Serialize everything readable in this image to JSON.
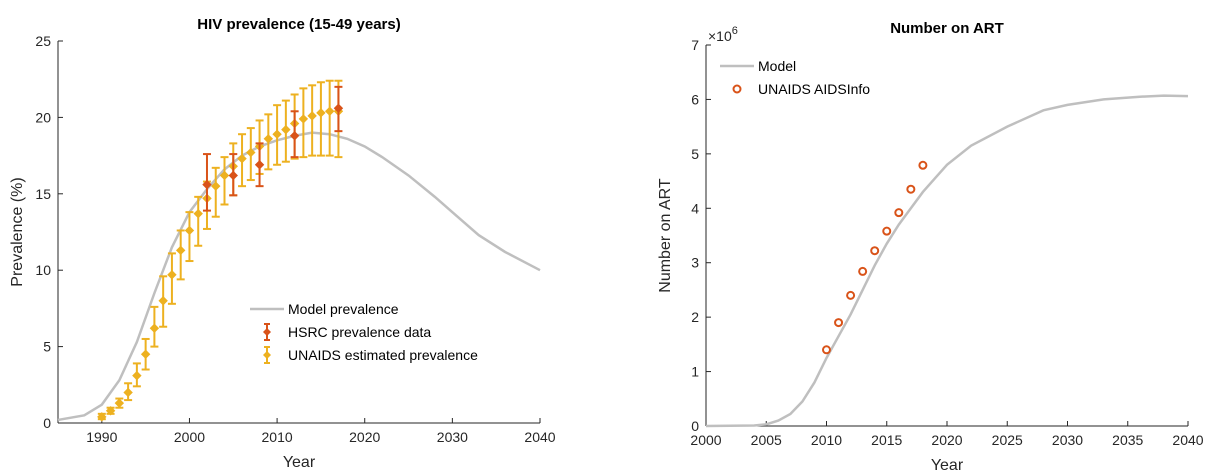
{
  "chart_data": [
    {
      "type": "line",
      "title": "HIV prevalence (15-49 years)",
      "x_label": "Year",
      "y_label": "Prevalence (%)",
      "xlim": [
        1985,
        2040
      ],
      "xticks": [
        1990,
        2000,
        2010,
        2020,
        2030,
        2040
      ],
      "ylim": [
        0,
        25
      ],
      "yticks": [
        0,
        5,
        10,
        15,
        20,
        25
      ],
      "legend": "lower-right",
      "series": [
        {
          "name": "Model prevalence",
          "mark": "line",
          "color": "#bfbfbf",
          "x": [
            1985,
            1988,
            1990,
            1992,
            1994,
            1996,
            1998,
            2000,
            2002,
            2004,
            2006,
            2008,
            2010,
            2012,
            2014,
            2016,
            2018,
            2020,
            2022,
            2025,
            2028,
            2030,
            2033,
            2036,
            2040
          ],
          "values": [
            0.2,
            0.5,
            1.2,
            2.8,
            5.3,
            8.5,
            11.5,
            13.8,
            15.3,
            16.6,
            17.5,
            18.1,
            18.5,
            18.8,
            19.0,
            18.9,
            18.6,
            18.1,
            17.4,
            16.2,
            14.8,
            13.8,
            12.3,
            11.2,
            10.0
          ]
        },
        {
          "name": "UNAIDS estimated prevalence",
          "mark": "errorbar",
          "color": "#edb120",
          "x": [
            1990,
            1991,
            1992,
            1993,
            1994,
            1995,
            1996,
            1997,
            1998,
            1999,
            2000,
            2001,
            2002,
            2003,
            2004,
            2005,
            2006,
            2007,
            2008,
            2009,
            2010,
            2011,
            2012,
            2013,
            2014,
            2015,
            2016,
            2017
          ],
          "values": [
            0.4,
            0.8,
            1.3,
            2.0,
            3.1,
            4.5,
            6.2,
            8.0,
            9.7,
            11.3,
            12.6,
            13.7,
            14.7,
            15.5,
            16.2,
            16.8,
            17.3,
            17.7,
            18.1,
            18.6,
            18.9,
            19.2,
            19.6,
            19.9,
            20.1,
            20.3,
            20.4,
            20.4
          ],
          "lower": [
            0.25,
            0.6,
            1.0,
            1.5,
            2.4,
            3.5,
            5.0,
            6.3,
            7.8,
            9.4,
            10.6,
            11.6,
            12.7,
            13.5,
            14.3,
            14.9,
            15.5,
            15.9,
            16.3,
            16.6,
            16.9,
            17.1,
            17.3,
            17.4,
            17.5,
            17.5,
            17.5,
            17.4
          ],
          "upper": [
            0.6,
            1.0,
            1.6,
            2.6,
            3.9,
            5.5,
            7.6,
            9.6,
            11.1,
            12.6,
            13.8,
            14.8,
            15.8,
            16.7,
            17.4,
            18.3,
            18.9,
            19.3,
            19.8,
            20.2,
            20.8,
            21.1,
            21.5,
            21.9,
            22.1,
            22.3,
            22.4,
            22.4
          ]
        },
        {
          "name": "HSRC prevalence data",
          "mark": "errorbar",
          "color": "#d95319",
          "x": [
            2002,
            2005,
            2008,
            2012,
            2017
          ],
          "values": [
            15.6,
            16.2,
            16.9,
            18.8,
            20.6
          ],
          "lower": [
            13.9,
            14.9,
            15.5,
            17.4,
            19.1
          ],
          "upper": [
            17.6,
            17.6,
            18.3,
            20.4,
            22.0
          ]
        }
      ],
      "legend_order": [
        0,
        2,
        1
      ]
    },
    {
      "type": "line",
      "title": "Number on ART",
      "x_label": "Year",
      "y_label": "Number on ART",
      "y_scale_base": "×10",
      "y_scale_power": "6",
      "xlim": [
        2000,
        2040
      ],
      "xticks": [
        2000,
        2005,
        2010,
        2015,
        2020,
        2025,
        2030,
        2035,
        2040
      ],
      "ylim": [
        0,
        7
      ],
      "yticks": [
        0,
        1,
        2,
        3,
        4,
        5,
        6,
        7
      ],
      "legend": "upper-left",
      "series": [
        {
          "name": "Model",
          "mark": "line",
          "color": "#bfbfbf",
          "x": [
            2000,
            2004,
            2005,
            2006,
            2007,
            2008,
            2009,
            2010,
            2011,
            2012,
            2013,
            2014,
            2015,
            2016,
            2017,
            2018,
            2019,
            2020,
            2022,
            2025,
            2028,
            2030,
            2033,
            2036,
            2038,
            2040
          ],
          "values": [
            0,
            0.01,
            0.03,
            0.1,
            0.22,
            0.45,
            0.8,
            1.25,
            1.65,
            2.05,
            2.5,
            2.95,
            3.35,
            3.7,
            4.0,
            4.3,
            4.55,
            4.8,
            5.15,
            5.5,
            5.8,
            5.9,
            6.0,
            6.05,
            6.07,
            6.06
          ]
        },
        {
          "name": "UNAIDS AIDSInfo",
          "mark": "circle",
          "color": "#d95319",
          "x": [
            2010,
            2011,
            2012,
            2013,
            2014,
            2015,
            2016,
            2017,
            2018
          ],
          "values": [
            1.4,
            1.9,
            2.4,
            2.84,
            3.22,
            3.58,
            3.92,
            4.35,
            4.79
          ]
        }
      ],
      "legend_order": [
        0,
        1
      ]
    }
  ]
}
